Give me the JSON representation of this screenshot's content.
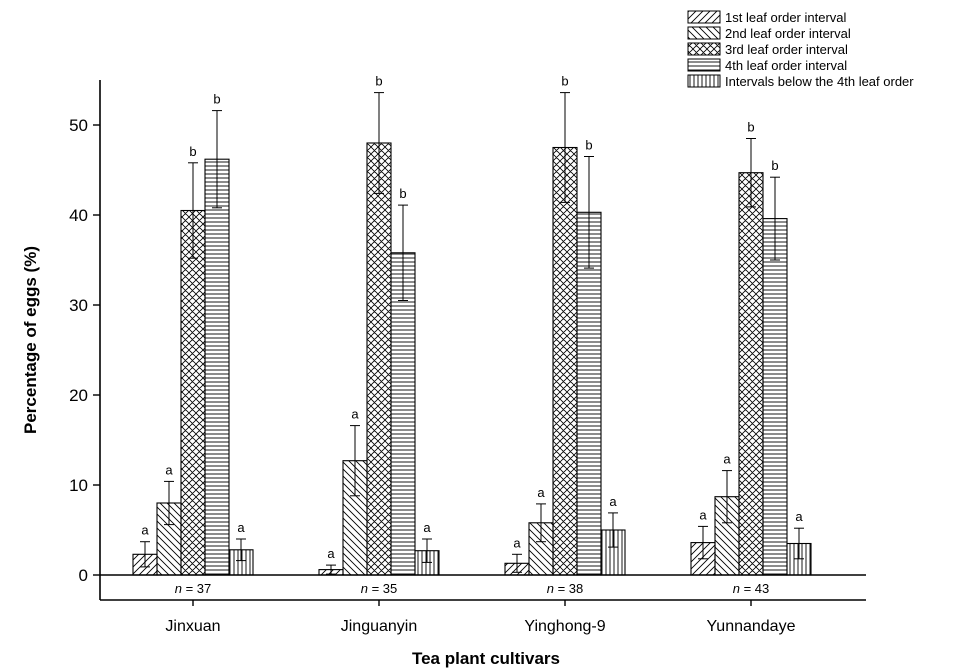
{
  "chart_data": {
    "type": "bar",
    "xlabel": "Tea plant cultivars",
    "ylabel": "Percentage of eggs (%)",
    "ylim": [
      0,
      55
    ],
    "yticks": [
      0,
      10,
      20,
      30,
      40,
      50
    ],
    "categories": [
      "Jinxuan",
      "Jinguanyin",
      "Yinghong-9",
      "Yunnandaye"
    ],
    "sample_sizes": [
      "37",
      "35",
      "38",
      "43"
    ],
    "legend_position": "top-right",
    "series": [
      {
        "name": "1st leaf order interval",
        "pattern": "diag-right",
        "values": [
          2.3,
          0.6,
          1.3,
          3.6
        ],
        "errors": [
          1.4,
          0.5,
          1.0,
          1.8
        ],
        "sig": [
          "a",
          "a",
          "a",
          "a"
        ]
      },
      {
        "name": "2nd leaf order interval",
        "pattern": "diag-left",
        "values": [
          8.0,
          12.7,
          5.8,
          8.7
        ],
        "errors": [
          2.4,
          3.9,
          2.1,
          2.9
        ],
        "sig": [
          "a",
          "a",
          "a",
          "a"
        ]
      },
      {
        "name": "3rd leaf order interval",
        "pattern": "crosshatch",
        "values": [
          40.5,
          48.0,
          47.5,
          44.7
        ],
        "errors": [
          5.3,
          5.6,
          6.1,
          3.8
        ],
        "sig": [
          "b",
          "b",
          "b",
          "b"
        ]
      },
      {
        "name": "4th leaf order interval",
        "pattern": "horizontal",
        "values": [
          46.2,
          35.8,
          40.3,
          39.6
        ],
        "errors": [
          5.4,
          5.3,
          6.2,
          4.6
        ],
        "sig": [
          "b",
          "b",
          "b",
          "b"
        ]
      },
      {
        "name": "Intervals below the 4th leaf order",
        "pattern": "vertical",
        "values": [
          2.8,
          2.7,
          5.0,
          3.5
        ],
        "errors": [
          1.2,
          1.3,
          1.9,
          1.7
        ],
        "sig": [
          "a",
          "a",
          "a",
          "a"
        ]
      }
    ]
  }
}
